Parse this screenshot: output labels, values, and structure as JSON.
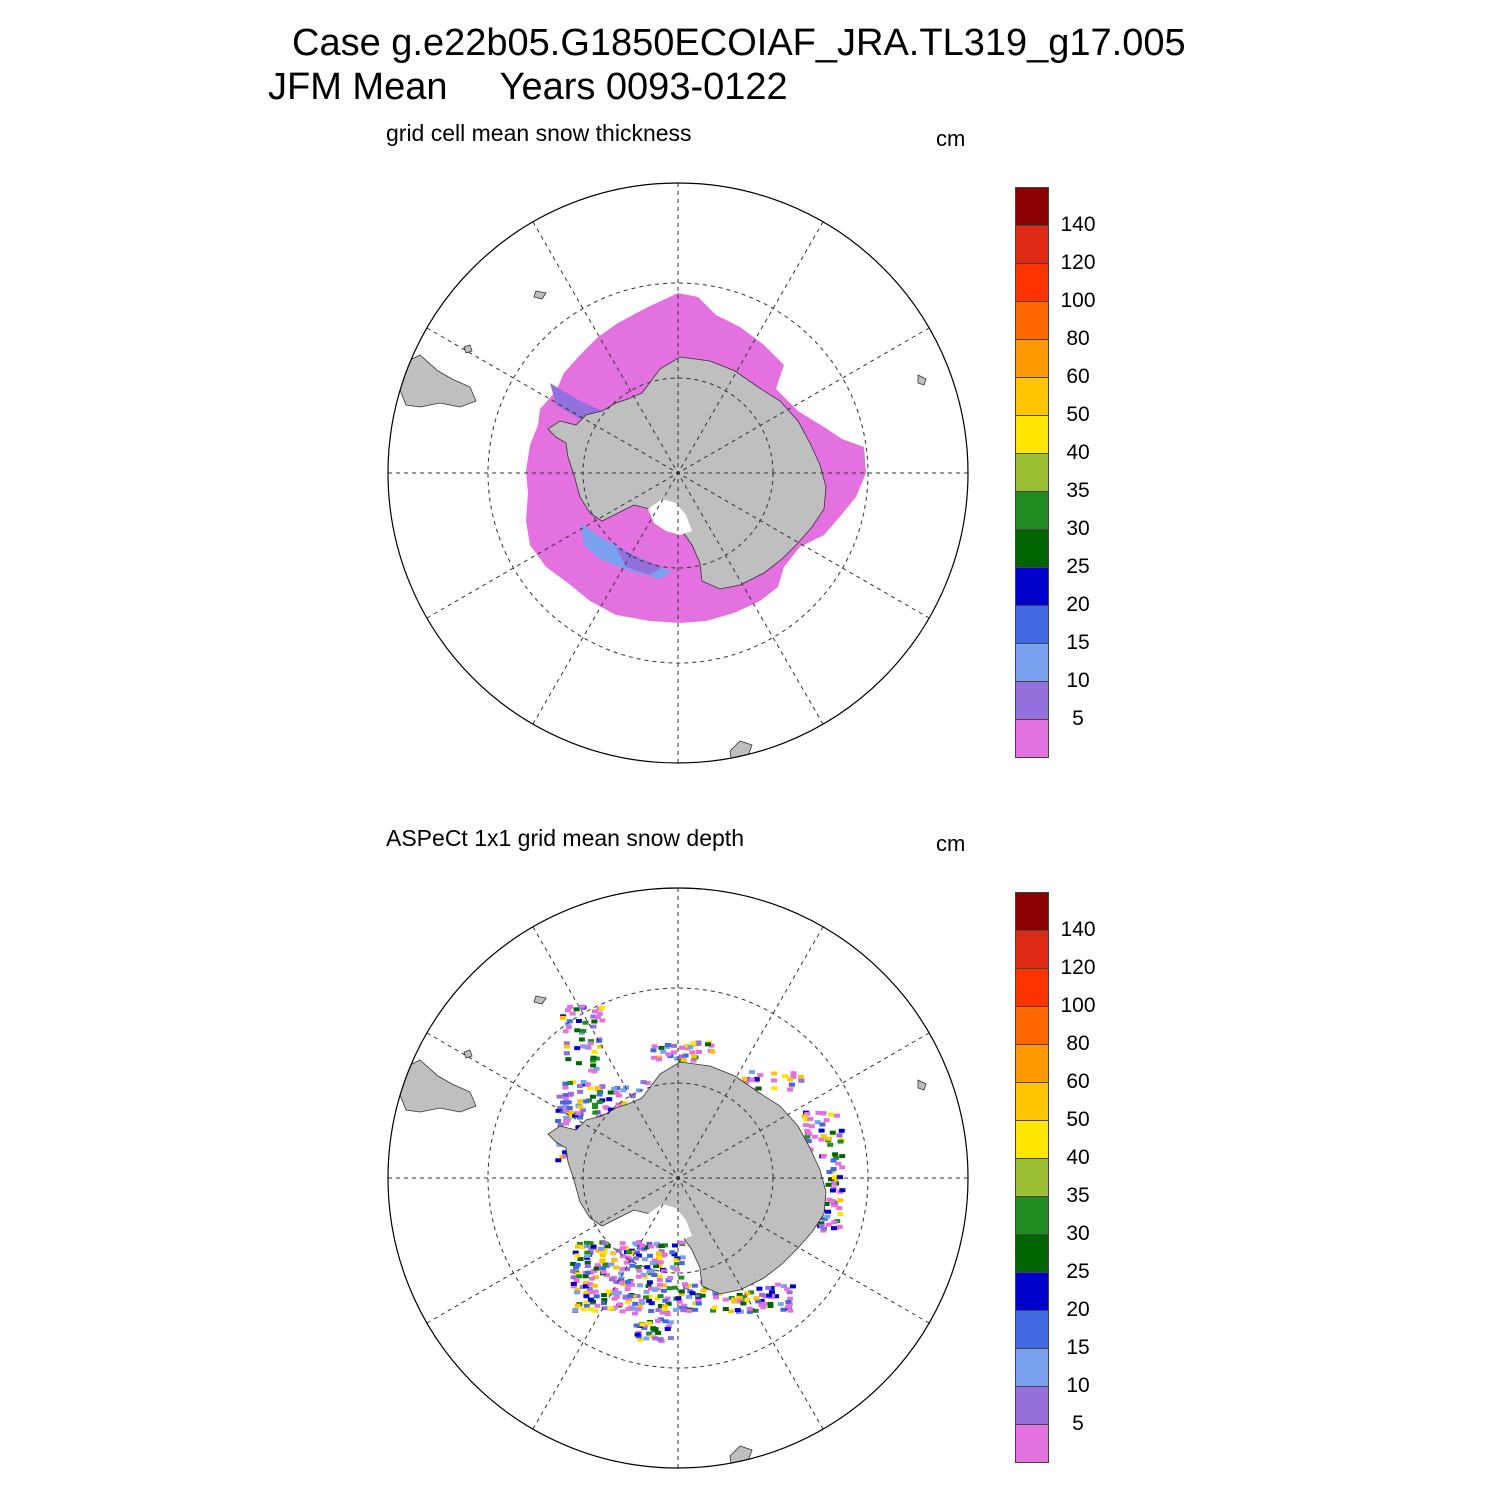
{
  "header": {
    "line1": "Case g.e22b05.G1850ECOIAF_JRA.TL319_g17.005",
    "line2": "JFM Mean     Years 0093-0122"
  },
  "panels": [
    {
      "title": "grid cell mean snow thickness",
      "units": "cm"
    },
    {
      "title": "ASPeCt 1x1 grid mean snow depth",
      "units": "cm"
    }
  ],
  "colorbar": {
    "labels": [
      "140",
      "120",
      "100",
      "80",
      "60",
      "50",
      "40",
      "35",
      "30",
      "25",
      "20",
      "15",
      "10",
      "5"
    ],
    "colors": [
      "#8b0000",
      "#dc2a14",
      "#ff3300",
      "#ff6600",
      "#ff9900",
      "#ffc400",
      "#ffe600",
      "#9cbf33",
      "#228b22",
      "#006400",
      "#0000cd",
      "#4169e1",
      "#7aa0f0",
      "#9370db",
      "#e471e0"
    ]
  },
  "colors": {
    "land": "#bfbfbf",
    "snow_thin": "#e471e0",
    "snow_5_10": "#9370db",
    "snow_10_15": "#7aa0f0"
  }
}
